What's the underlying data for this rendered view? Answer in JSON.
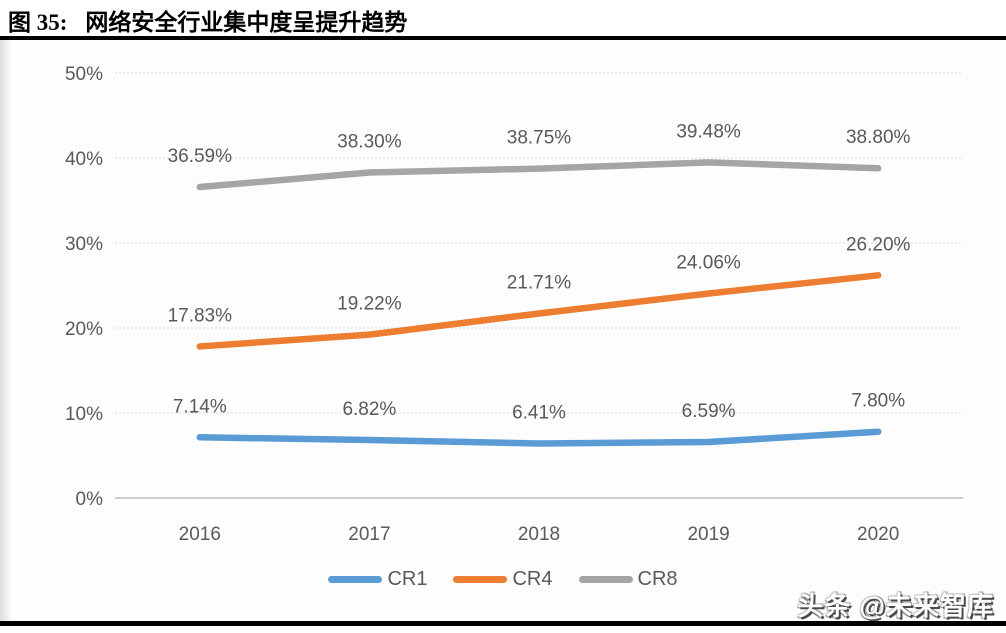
{
  "figure": {
    "label": "图  35:",
    "title": "网络安全行业集中度呈提升趋势"
  },
  "watermark": "头条 @未来智库",
  "chart_data": {
    "type": "line",
    "title": "网络安全行业集中度呈提升趋势",
    "categories": [
      "2016",
      "2017",
      "2018",
      "2019",
      "2020"
    ],
    "series": [
      {
        "name": "CR1",
        "color": "#5b9bd5",
        "values": [
          7.14,
          6.82,
          6.41,
          6.59,
          7.8
        ],
        "labels": [
          "7.14%",
          "6.82%",
          "6.41%",
          "6.59%",
          "7.80%"
        ]
      },
      {
        "name": "CR4",
        "color": "#ed7d31",
        "values": [
          17.83,
          19.22,
          21.71,
          24.06,
          26.2
        ],
        "labels": [
          "17.83%",
          "19.22%",
          "21.71%",
          "24.06%",
          "26.20%"
        ]
      },
      {
        "name": "CR8",
        "color": "#a5a5a5",
        "values": [
          36.59,
          38.3,
          38.75,
          39.48,
          38.8
        ],
        "labels": [
          "36.59%",
          "38.30%",
          "38.75%",
          "39.48%",
          "38.80%"
        ]
      }
    ],
    "y_axis": {
      "min": 0,
      "max": 50,
      "step": 10,
      "tick_labels": [
        "0%",
        "10%",
        "20%",
        "30%",
        "40%",
        "50%"
      ]
    },
    "xlabel": "",
    "ylabel": "",
    "grid": true,
    "legend": [
      "CR1",
      "CR4",
      "CR8"
    ],
    "legend_position": "bottom"
  },
  "colors": {
    "cr1": "#5b9bd5",
    "cr4": "#ed7d31",
    "cr8": "#a5a5a5",
    "grid": "#d9d9d9",
    "axis": "#bfbfbf",
    "label_text": "#595959",
    "title_text": "#000000"
  }
}
